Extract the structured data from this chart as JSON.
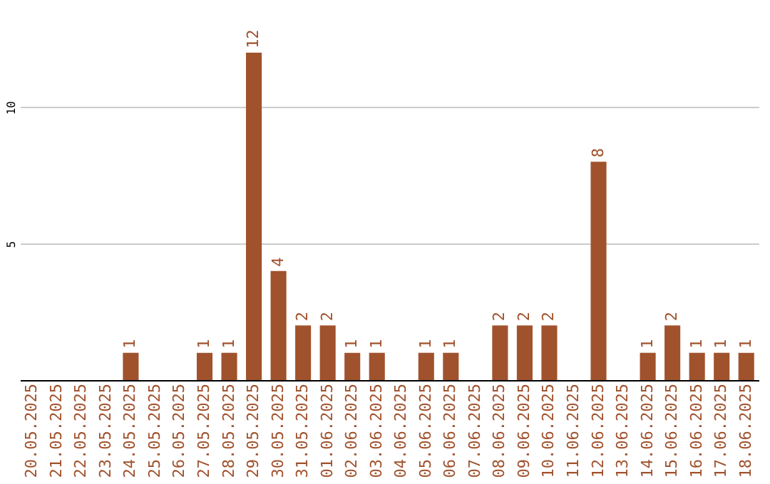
{
  "chart_data": {
    "type": "bar",
    "categories": [
      "20.05.2025",
      "21.05.2025",
      "22.05.2025",
      "23.05.2025",
      "24.05.2025",
      "25.05.2025",
      "26.05.2025",
      "27.05.2025",
      "28.05.2025",
      "29.05.2025",
      "30.05.2025",
      "31.05.2025",
      "01.06.2025",
      "02.06.2025",
      "03.06.2025",
      "04.06.2025",
      "05.06.2025",
      "06.06.2025",
      "07.06.2025",
      "08.06.2025",
      "09.06.2025",
      "10.06.2025",
      "11.06.2025",
      "12.06.2025",
      "13.06.2025",
      "14.06.2025",
      "15.06.2025",
      "16.06.2025",
      "17.06.2025",
      "18.06.2025"
    ],
    "values": [
      0,
      0,
      0,
      0,
      1,
      0,
      0,
      1,
      1,
      12,
      4,
      2,
      2,
      1,
      1,
      0,
      1,
      1,
      0,
      2,
      2,
      2,
      0,
      8,
      0,
      1,
      2,
      1,
      1,
      1
    ],
    "value_labels": [
      null,
      null,
      null,
      null,
      "1",
      null,
      null,
      "1",
      "1",
      "12",
      "4",
      "2",
      "2",
      "1",
      "1",
      null,
      "1",
      "1",
      null,
      "2",
      "2",
      "2",
      null,
      "8",
      null,
      "1",
      "2",
      "1",
      "1",
      "1"
    ],
    "color": "#a0522d",
    "ylim": [
      0,
      12
    ],
    "yticks": [
      5,
      10
    ],
    "grid": "y"
  }
}
